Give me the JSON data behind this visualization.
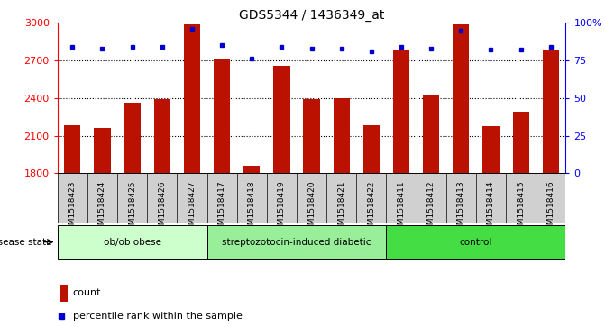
{
  "title": "GDS5344 / 1436349_at",
  "samples": [
    "GSM1518423",
    "GSM1518424",
    "GSM1518425",
    "GSM1518426",
    "GSM1518427",
    "GSM1518417",
    "GSM1518418",
    "GSM1518419",
    "GSM1518420",
    "GSM1518421",
    "GSM1518422",
    "GSM1518411",
    "GSM1518412",
    "GSM1518413",
    "GSM1518414",
    "GSM1518415",
    "GSM1518416"
  ],
  "counts": [
    2185,
    2165,
    2360,
    2390,
    2990,
    2710,
    1860,
    2660,
    2390,
    2400,
    2185,
    2790,
    2420,
    2990,
    2175,
    2295,
    2790
  ],
  "percentile_ranks": [
    84,
    83,
    84,
    84,
    96,
    85,
    76,
    84,
    83,
    83,
    81,
    84,
    83,
    95,
    82,
    82,
    84
  ],
  "groups": [
    {
      "label": "ob/ob obese",
      "start": 0,
      "end": 5
    },
    {
      "label": "streptozotocin-induced diabetic",
      "start": 5,
      "end": 11
    },
    {
      "label": "control",
      "start": 11,
      "end": 17
    }
  ],
  "group_colors": [
    "#ccffcc",
    "#99ee99",
    "#44dd44"
  ],
  "bar_color": "#bb1100",
  "dot_color": "#0000cc",
  "ylim_left": [
    1800,
    3000
  ],
  "ylim_right": [
    0,
    100
  ],
  "yticks_left": [
    1800,
    2100,
    2400,
    2700,
    3000
  ],
  "yticks_right": [
    0,
    25,
    50,
    75,
    100
  ],
  "grid_values": [
    2100,
    2400,
    2700
  ],
  "legend_count_label": "count",
  "legend_pct_label": "percentile rank within the sample",
  "disease_state_label": "disease state",
  "sample_bg_color": "#d0d0d0",
  "plot_bg_color": "#ffffff",
  "bar_width": 0.55
}
